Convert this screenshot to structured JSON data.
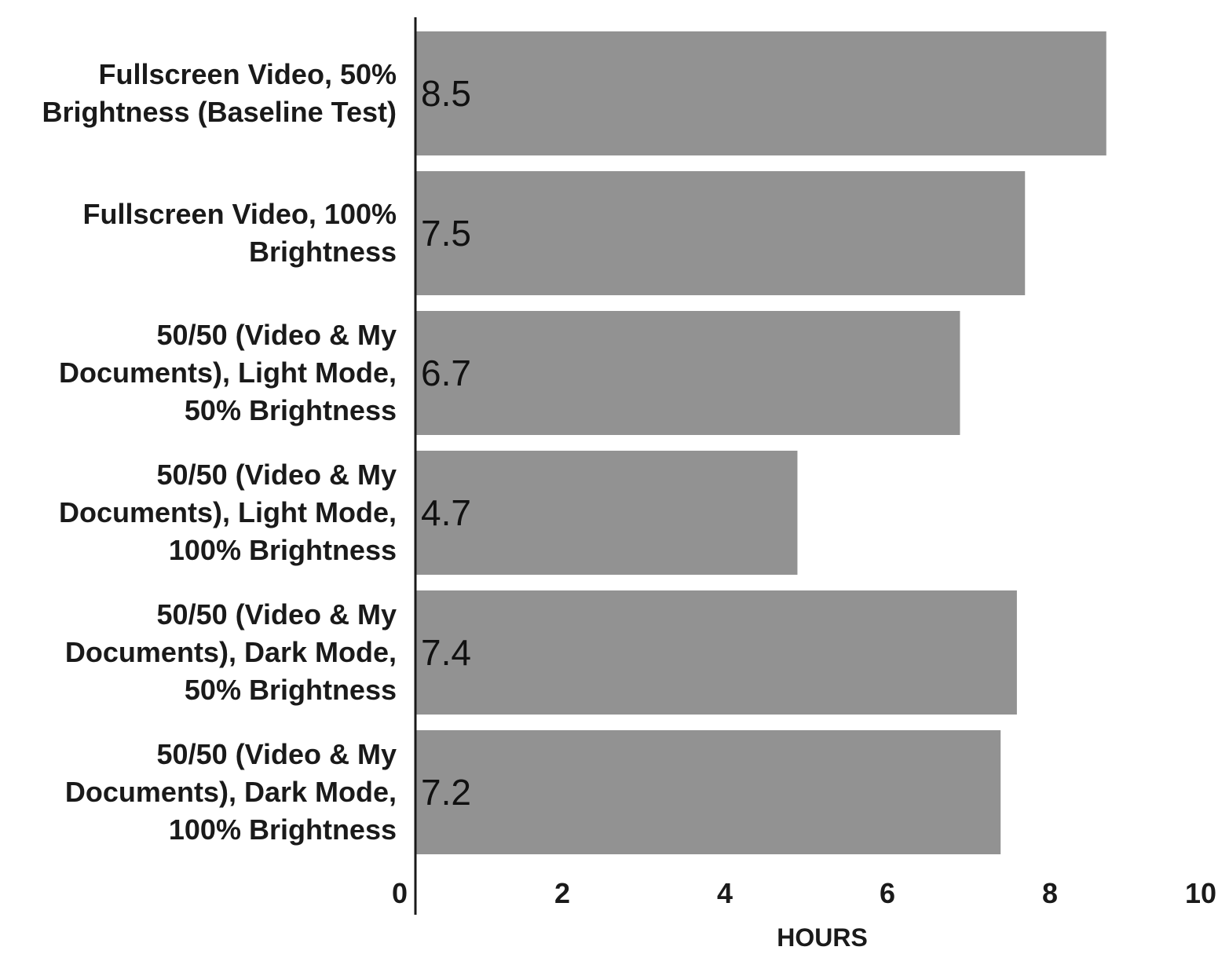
{
  "chart_data": {
    "type": "bar",
    "orientation": "horizontal",
    "categories": [
      [
        "Fullscreen Video, 50%",
        "Brightness (Baseline Test)"
      ],
      [
        "Fullscreen Video, 100%",
        "Brightness"
      ],
      [
        "50/50 (Video & My",
        "Documents), Light Mode,",
        "50% Brightness"
      ],
      [
        "50/50 (Video & My",
        "Documents), Light Mode,",
        "100% Brightness"
      ],
      [
        "50/50 (Video & My",
        "Documents), Dark Mode,",
        "50% Brightness"
      ],
      [
        "50/50 (Video & My",
        "Documents), Dark Mode,",
        "100% Brightness"
      ]
    ],
    "values": [
      8.5,
      7.5,
      6.7,
      4.7,
      7.4,
      7.2
    ],
    "data_labels": [
      "8.5",
      "7.5",
      "6.7",
      "4.7",
      "7.4",
      "7.2"
    ],
    "xlabel": "HOURS",
    "ylabel": "",
    "xlim": [
      0,
      10
    ],
    "xticks": [
      0,
      2,
      4,
      6,
      8,
      10
    ],
    "grid": false,
    "legend": "none",
    "bar_color": "#929292",
    "axis_color": "#1a1a1a"
  }
}
